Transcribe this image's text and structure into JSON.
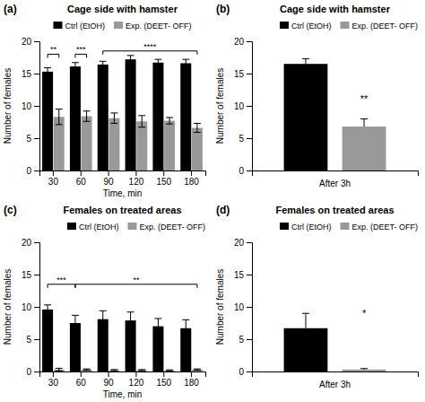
{
  "chart_data": [
    {
      "type": "bar",
      "panel_label": "(a)",
      "title": "Cage side with hamster",
      "xlabel": "Time, min",
      "ylabel": "Number of females",
      "categories": [
        "30",
        "60",
        "90",
        "120",
        "150",
        "180"
      ],
      "series": [
        {
          "name": "Ctrl (EtOH)",
          "color": "#000000",
          "values": [
            15.3,
            16.1,
            16.4,
            17.2,
            16.7,
            16.6
          ],
          "errors": [
            0.6,
            0.6,
            0.5,
            0.6,
            0.5,
            0.6
          ]
        },
        {
          "name": "Exp. (DEET- OFF)",
          "color": "#999999",
          "values": [
            8.3,
            8.4,
            8.1,
            7.6,
            7.7,
            6.6
          ],
          "errors": [
            1.2,
            0.8,
            0.8,
            0.9,
            0.5,
            0.7
          ]
        }
      ],
      "ylim": [
        0,
        20
      ],
      "yticks": [
        0,
        5,
        10,
        15,
        20
      ],
      "grid": false,
      "legend": "upper center",
      "annotations": [
        {
          "text": "**",
          "y": 18.0,
          "from": {
            "category": "30",
            "series": "Ctrl (EtOH)"
          },
          "to": {
            "category": "30",
            "series": "Exp. (DEET- OFF)"
          }
        },
        {
          "text": "***",
          "y": 18.0,
          "from": {
            "category": "60",
            "series": "Ctrl (EtOH)"
          },
          "to": {
            "category": "60",
            "series": "Exp. (DEET- OFF)"
          }
        },
        {
          "text": "****",
          "y": 18.5,
          "from": {
            "category": "90",
            "series": "Ctrl (EtOH)"
          },
          "to": {
            "category": "180",
            "series": "Exp. (DEET- OFF)"
          }
        }
      ]
    },
    {
      "type": "bar",
      "panel_label": "(b)",
      "title": "Cage side with hamster",
      "xlabel": "After 3h",
      "ylabel": "Number of females",
      "categories": [
        null
      ],
      "series": [
        {
          "name": "Ctrl (EtOH)",
          "color": "#000000",
          "values": [
            16.5
          ],
          "errors_low": [
            0
          ],
          "errors_high": [
            0.8
          ]
        },
        {
          "name": "Exp. (DEET- OFF)",
          "color": "#999999",
          "values": [
            6.8
          ],
          "errors_low": [
            0
          ],
          "errors_high": [
            1.2
          ]
        }
      ],
      "ylim": [
        0,
        20
      ],
      "yticks": [
        0,
        5,
        10,
        15,
        20
      ],
      "grid": false,
      "legend": "upper right",
      "tick_labels": "y",
      "annotations": [
        {
          "text": "**",
          "y": 10.5,
          "at": {
            "category": null,
            "series": "Exp. (DEET- OFF)"
          }
        }
      ]
    },
    {
      "type": "bar",
      "panel_label": "(c)",
      "title": "Females on treated areas",
      "xlabel": "Time, min",
      "ylabel": "Number of females",
      "categories": [
        "30",
        "60",
        "90",
        "120",
        "150",
        "180"
      ],
      "series": [
        {
          "name": "Ctrl (EtOH)",
          "color": "#000000",
          "values": [
            9.6,
            7.5,
            8.1,
            7.9,
            7.0,
            6.7
          ],
          "errors": [
            0.7,
            1.2,
            1.3,
            1.3,
            1.2,
            1.3
          ]
        },
        {
          "name": "Exp. (DEET- OFF)",
          "color": "#999999",
          "values": [
            0.3,
            0.3,
            0.2,
            0.2,
            0.15,
            0.3
          ],
          "errors": [
            0.2,
            0.1,
            0.1,
            0.1,
            0.1,
            0.1
          ]
        }
      ],
      "ylim": [
        0,
        20
      ],
      "yticks": [
        0,
        5,
        10,
        15,
        20
      ],
      "grid": false,
      "legend": "upper right",
      "annotations": [
        {
          "text": "***",
          "y": 13.5,
          "from": {
            "category": "30",
            "series": "Ctrl (EtOH)"
          },
          "to": {
            "category": "60",
            "series": "Ctrl (EtOH)"
          }
        },
        {
          "text": "**",
          "y": 13.5,
          "from": {
            "category": "60",
            "series": "Ctrl (EtOH)"
          },
          "to": {
            "category": "180",
            "series": "Exp. (DEET- OFF)"
          }
        }
      ]
    },
    {
      "type": "bar",
      "panel_label": "(d)",
      "title": "Females on treated areas",
      "xlabel": "After 3h",
      "ylabel": "Number of females",
      "categories": [
        null
      ],
      "series": [
        {
          "name": "Ctrl (EtOH)",
          "color": "#000000",
          "values": [
            6.7
          ],
          "errors_low": [
            0.0
          ],
          "errors_high": [
            2.3
          ]
        },
        {
          "name": "Exp. (DEET- OFF)",
          "color": "#999999",
          "values": [
            0.3
          ],
          "errors_low": [
            0.0
          ],
          "errors_high": [
            0.15
          ]
        }
      ],
      "ylim": [
        0,
        20
      ],
      "yticks": [
        0,
        5,
        10,
        15,
        20
      ],
      "grid": false,
      "legend": "upper right",
      "tick_labels": "y",
      "annotations": [
        {
          "text": "*",
          "y": 8.5,
          "at": {
            "category": null,
            "series": "Exp. (DEET- OFF)"
          }
        }
      ]
    }
  ]
}
